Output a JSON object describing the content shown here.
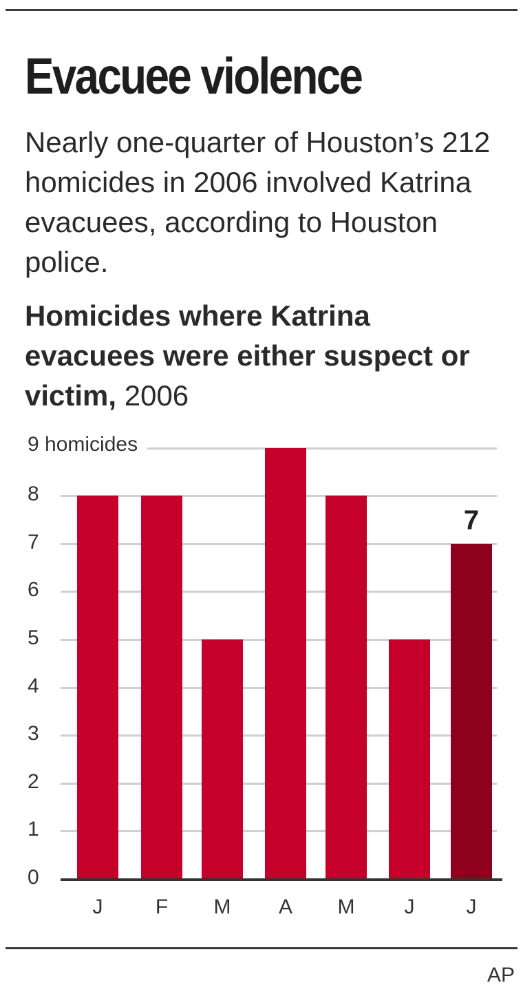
{
  "header": {
    "title": "Evacuee violence",
    "intro": "Nearly one-quarter of Houston’s 212 homicides in 2006 involved Katrina evacuees, according to Houston police.",
    "subhead_bold": "Homicides where Katrina evacuees were either suspect or victim,",
    "subhead_year": " 2006"
  },
  "chart": {
    "unit_label": "9 homicides",
    "y_ticks": [
      "0",
      "1",
      "2",
      "3",
      "4",
      "5",
      "6",
      "7",
      "8"
    ],
    "highlight_value_label": "7",
    "bar_color": "#c4002b",
    "highlight_color": "#8e001c"
  },
  "footer": {
    "credit": "AP"
  },
  "chart_data": {
    "type": "bar",
    "title": "Evacuee violence",
    "subtitle": "Homicides where Katrina evacuees were either suspect or victim, 2006",
    "categories": [
      "J",
      "F",
      "M",
      "A",
      "M",
      "J",
      "J"
    ],
    "values": [
      8,
      8,
      5,
      9,
      8,
      5,
      7
    ],
    "xlabel": "",
    "ylabel": "homicides",
    "ylim": [
      0,
      9
    ],
    "y_ticks": [
      0,
      1,
      2,
      3,
      4,
      5,
      6,
      7,
      8,
      9
    ],
    "grid": true,
    "annotations": [
      {
        "category_index": 6,
        "text": "7"
      }
    ],
    "highlight_index": 6,
    "source": "AP"
  }
}
